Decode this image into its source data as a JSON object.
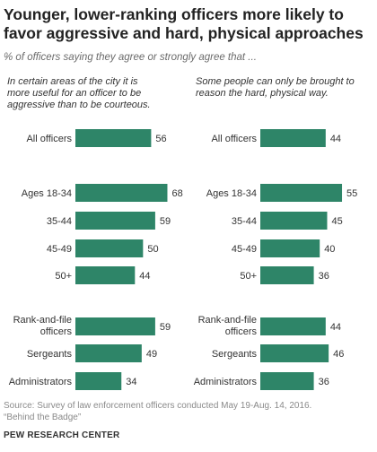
{
  "title": "Younger, lower-ranking officers more likely to favor aggressive and hard, physical approaches",
  "subtitle": "% of officers saying they agree or strongly agree that ...",
  "source": "Source: Survey of law enforcement officers conducted May 19-Aug. 14, 2016.",
  "report": "“Behind the Badge”",
  "org": "PEW RESEARCH CENTER",
  "bar_color": "#2e8568",
  "chart_data": [
    {
      "type": "bar",
      "title": "In certain areas of the city it is more useful for an officer to be aggressive than to be courteous.",
      "categories": [
        "All officers",
        "Ages 18-34",
        "35-44",
        "45-49",
        "50+",
        "Rank-and-file officers",
        "Sergeants",
        "Administrators"
      ],
      "values": [
        56,
        68,
        59,
        50,
        44,
        59,
        49,
        34
      ],
      "xlim": [
        0,
        100
      ]
    },
    {
      "type": "bar",
      "title": "Some people can only be brought to reason the hard, physical way.",
      "categories": [
        "All officers",
        "Ages 18-34",
        "35-44",
        "45-49",
        "50+",
        "Rank-and-file officers",
        "Sergeants",
        "Administrators"
      ],
      "values": [
        44,
        55,
        45,
        40,
        36,
        44,
        46,
        36
      ],
      "xlim": [
        0,
        100
      ]
    }
  ]
}
